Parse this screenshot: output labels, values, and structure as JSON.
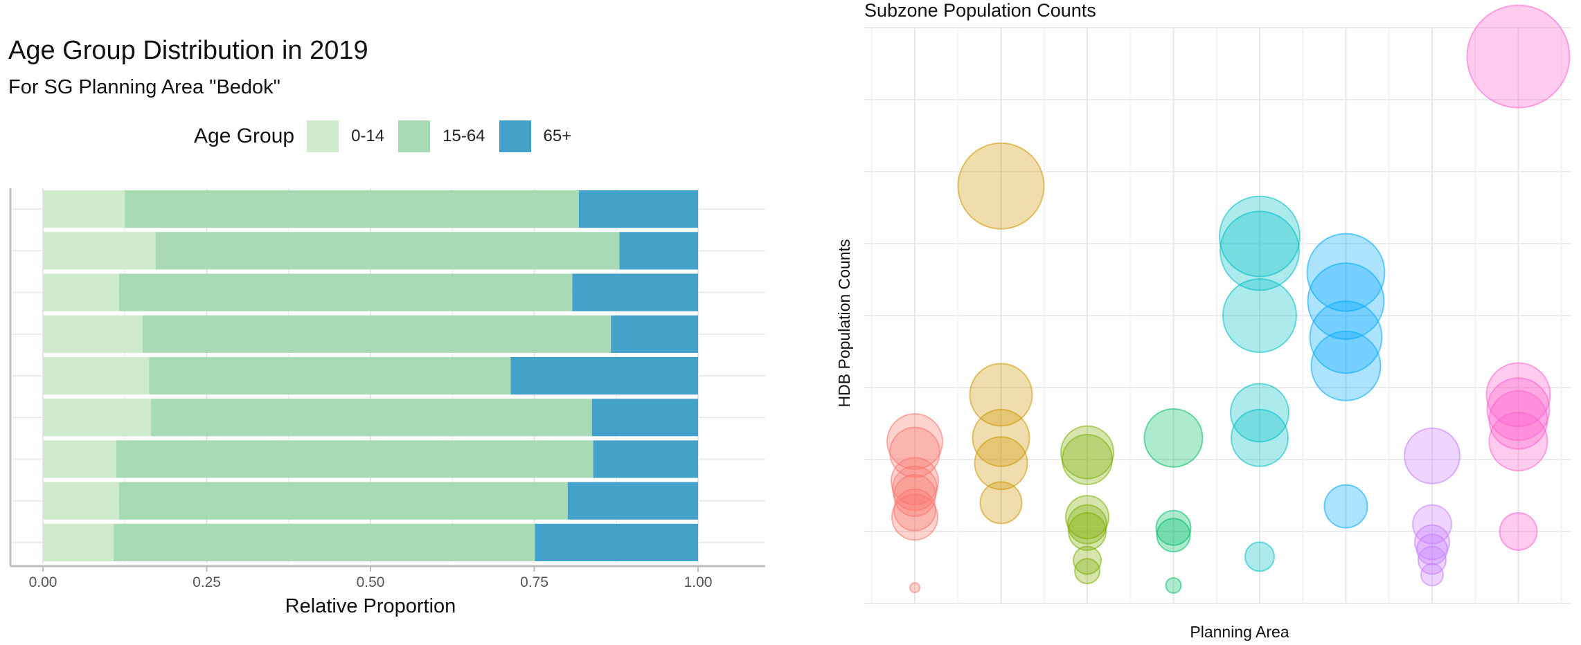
{
  "chart_data": [
    {
      "type": "bar",
      "orientation": "horizontal",
      "stacked": true,
      "title": "Age Group Distribution in 2019",
      "subtitle": "For SG Planning Area \"Bedok\"",
      "xlabel": "Relative Proportion",
      "ylabel": "",
      "xlim": [
        0,
        1
      ],
      "x_ticks": [
        "0.00",
        "0.25",
        "0.50",
        "0.75",
        "1.00"
      ],
      "grid": true,
      "legend": {
        "title": "Age Group",
        "position": "top"
      },
      "series": [
        {
          "name": "0-14",
          "color": "#cfeacc",
          "values": [
            0.125,
            0.172,
            0.116,
            0.152,
            0.162,
            0.165,
            0.112,
            0.116,
            0.108
          ]
        },
        {
          "name": "15-64",
          "color": "#a8dbb5",
          "values": [
            0.693,
            0.708,
            0.692,
            0.715,
            0.552,
            0.673,
            0.728,
            0.685,
            0.643
          ]
        },
        {
          "name": "65+",
          "color": "#43a2ca",
          "values": [
            0.182,
            0.12,
            0.192,
            0.133,
            0.286,
            0.162,
            0.16,
            0.199,
            0.249
          ]
        }
      ]
    },
    {
      "type": "scatter",
      "title": "Subzone Population Counts",
      "xlabel": "Planning Area",
      "ylabel": "HDB Population Counts",
      "grid": true,
      "legend": null,
      "categories_count": 8,
      "ylim": [
        0,
        8
      ],
      "series": [
        {
          "color": "#f8766d",
          "points": [
            {
              "x": 1,
              "y": 2.25,
              "s": 40
            },
            {
              "x": 1,
              "y": 2.1,
              "s": 36
            },
            {
              "x": 1,
              "y": 1.7,
              "s": 34
            },
            {
              "x": 1,
              "y": 1.6,
              "s": 32
            },
            {
              "x": 1,
              "y": 1.5,
              "s": 30
            },
            {
              "x": 1,
              "y": 1.3,
              "s": 30
            },
            {
              "x": 1,
              "y": 1.2,
              "s": 33
            },
            {
              "x": 1,
              "y": 0.22,
              "s": 7
            }
          ]
        },
        {
          "color": "#cd9600",
          "points": [
            {
              "x": 2,
              "y": 5.8,
              "s": 62
            },
            {
              "x": 2,
              "y": 2.9,
              "s": 45
            },
            {
              "x": 2,
              "y": 2.3,
              "s": 41
            },
            {
              "x": 2,
              "y": 1.95,
              "s": 38
            },
            {
              "x": 2,
              "y": 1.4,
              "s": 30
            }
          ]
        },
        {
          "color": "#7cae00",
          "points": [
            {
              "x": 3,
              "y": 2.1,
              "s": 38
            },
            {
              "x": 3,
              "y": 2.0,
              "s": 36
            },
            {
              "x": 3,
              "y": 1.2,
              "s": 31
            },
            {
              "x": 3,
              "y": 1.1,
              "s": 28
            },
            {
              "x": 3,
              "y": 1.0,
              "s": 27
            },
            {
              "x": 3,
              "y": 0.6,
              "s": 20
            },
            {
              "x": 3,
              "y": 0.45,
              "s": 18
            }
          ]
        },
        {
          "color": "#00be67",
          "points": [
            {
              "x": 4,
              "y": 2.3,
              "s": 42
            },
            {
              "x": 4,
              "y": 1.05,
              "s": 25
            },
            {
              "x": 4,
              "y": 0.95,
              "s": 24
            },
            {
              "x": 4,
              "y": 0.25,
              "s": 11
            }
          ]
        },
        {
          "color": "#00bfc4",
          "points": [
            {
              "x": 5,
              "y": 5.1,
              "s": 58
            },
            {
              "x": 5,
              "y": 4.9,
              "s": 57
            },
            {
              "x": 5,
              "y": 4.0,
              "s": 53
            },
            {
              "x": 5,
              "y": 2.65,
              "s": 42
            },
            {
              "x": 5,
              "y": 2.3,
              "s": 41
            },
            {
              "x": 5,
              "y": 0.65,
              "s": 21
            }
          ]
        },
        {
          "color": "#00a9ff",
          "points": [
            {
              "x": 6,
              "y": 4.6,
              "s": 56
            },
            {
              "x": 6,
              "y": 4.2,
              "s": 55
            },
            {
              "x": 6,
              "y": 3.7,
              "s": 52
            },
            {
              "x": 6,
              "y": 3.3,
              "s": 50
            },
            {
              "x": 6,
              "y": 1.35,
              "s": 31
            }
          ]
        },
        {
          "color": "#c77cff",
          "points": [
            {
              "x": 7,
              "y": 2.05,
              "s": 40
            },
            {
              "x": 7,
              "y": 1.1,
              "s": 28
            },
            {
              "x": 7,
              "y": 0.85,
              "s": 25
            },
            {
              "x": 7,
              "y": 0.75,
              "s": 22
            },
            {
              "x": 7,
              "y": 0.6,
              "s": 20
            },
            {
              "x": 7,
              "y": 0.4,
              "s": 16
            }
          ]
        },
        {
          "color": "#ff61cc",
          "points": [
            {
              "x": 8,
              "y": 7.6,
              "s": 74
            },
            {
              "x": 8,
              "y": 2.9,
              "s": 46
            },
            {
              "x": 8,
              "y": 2.7,
              "s": 45
            },
            {
              "x": 8,
              "y": 2.55,
              "s": 42
            },
            {
              "x": 8,
              "y": 2.25,
              "s": 42
            },
            {
              "x": 8,
              "y": 1.0,
              "s": 27
            }
          ]
        }
      ]
    }
  ]
}
